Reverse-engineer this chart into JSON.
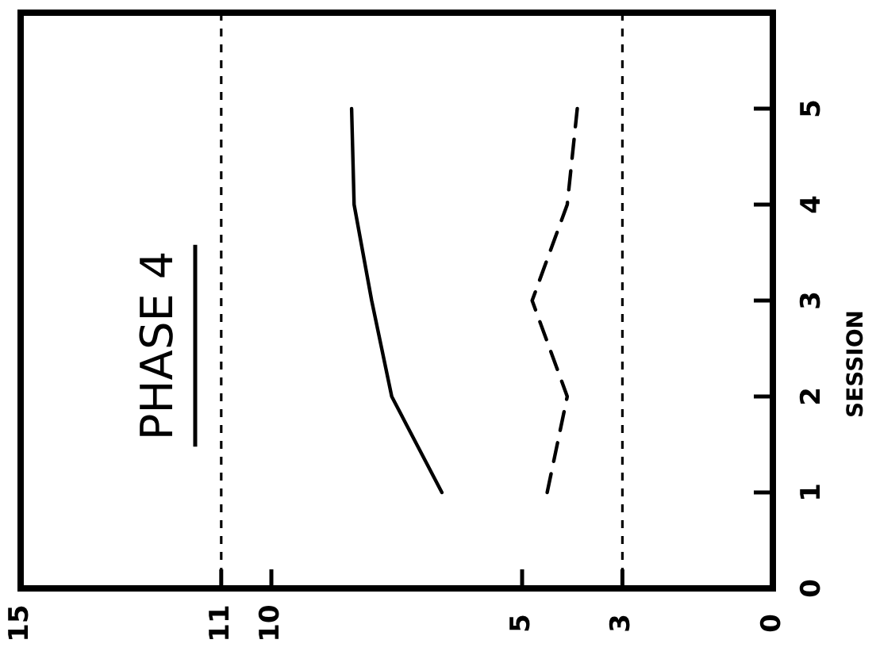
{
  "chart_data": {
    "type": "line",
    "series": [
      {
        "color": "#000000",
        "line_style": "solid",
        "x": [
          6.6,
          7.6,
          8.0,
          8.35,
          8.4
        ],
        "values": [
          1,
          2,
          3,
          4,
          5
        ]
      },
      {
        "color": "#000000",
        "line_style": "dashed",
        "x": [
          4.5,
          4.1,
          4.8,
          4.1,
          3.9
        ],
        "values": [
          1,
          2,
          3,
          4,
          5
        ]
      }
    ],
    "ylabel": "SESSION",
    "xlim": [
      15,
      0
    ],
    "xticks": [
      15,
      11,
      10,
      5,
      3,
      0
    ],
    "ylim": [
      0,
      6
    ],
    "yticks": [
      0,
      1,
      2,
      3,
      4,
      5
    ],
    "ref_lines": [
      {
        "axis": "x",
        "value": 11,
        "line_style": "dashed",
        "color": "#000000"
      },
      {
        "axis": "x",
        "value": 3,
        "line_style": "dashed",
        "color": "#000000"
      }
    ],
    "annotations": [
      "PHASE 4"
    ],
    "marker": "none",
    "grid": false,
    "legend": false
  }
}
